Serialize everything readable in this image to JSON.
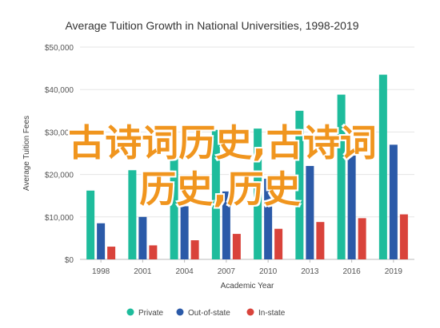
{
  "chart_data": {
    "type": "bar",
    "title": "Average Tuition Growth in National Universities, 1998-2019",
    "xlabel": "Academic Year",
    "ylabel": "Average Tuition Fees",
    "categories": [
      "1998",
      "2001",
      "2004",
      "2007",
      "2010",
      "2013",
      "2016",
      "2019"
    ],
    "series": [
      {
        "name": "Private",
        "color": "#1ebc9c",
        "values": [
          16200,
          21000,
          24000,
          30500,
          30800,
          35000,
          38800,
          43500
        ]
      },
      {
        "name": "Out-of-state",
        "color": "#2b5aa8",
        "values": [
          8500,
          10000,
          12500,
          16000,
          19000,
          22000,
          24500,
          27000
        ]
      },
      {
        "name": "In-state",
        "color": "#d9433b",
        "values": [
          3000,
          3300,
          4500,
          6000,
          7200,
          8800,
          9700,
          10600
        ]
      }
    ],
    "ylim": [
      0,
      50000
    ],
    "yticks": [
      "$0",
      "$10,000",
      "$20,000",
      "$30,000",
      "$40,000",
      "$50,000"
    ],
    "grid": true,
    "legend_position": "bottom"
  },
  "overlay": {
    "line1": "古诗词历史,古诗词",
    "line2": "历史,历史"
  }
}
